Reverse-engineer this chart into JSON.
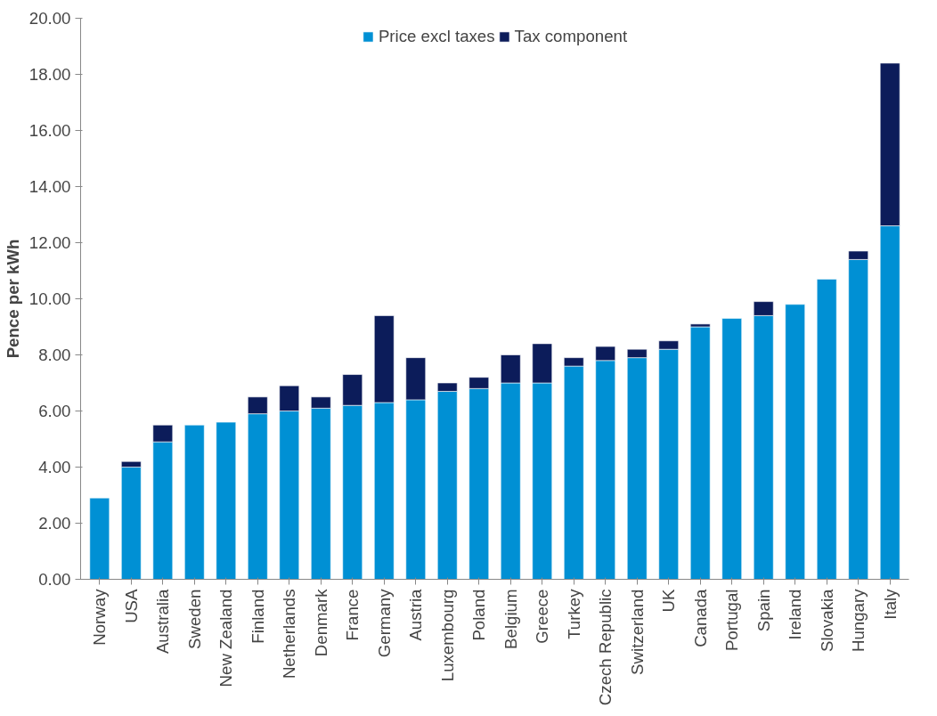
{
  "chart_data": {
    "type": "bar",
    "stacked": true,
    "ylabel": "Pence per kWh",
    "categories": [
      "Norway",
      "USA",
      "Australia",
      "Sweden",
      "New Zealand",
      "Finland",
      "Netherlands",
      "Denmark",
      "France",
      "Germany",
      "Austria",
      "Luxembourg",
      "Poland",
      "Belgium",
      "Greece",
      "Turkey",
      "Czech Republic",
      "Switzerland",
      "UK",
      "Canada",
      "Portugal",
      "Spain",
      "Ireland",
      "Slovakia",
      "Hungary",
      "Italy"
    ],
    "series": [
      {
        "name": "Price excl taxes",
        "color": "#0090d4",
        "values": [
          2.9,
          4.0,
          4.9,
          5.5,
          5.6,
          5.9,
          6.0,
          6.1,
          6.2,
          6.3,
          6.4,
          6.7,
          6.8,
          7.0,
          7.0,
          7.6,
          7.8,
          7.9,
          8.2,
          9.0,
          9.3,
          9.4,
          9.8,
          10.7,
          11.4,
          12.6
        ]
      },
      {
        "name": "Tax component",
        "color": "#0c1c5a",
        "values": [
          null,
          0.2,
          0.6,
          null,
          null,
          0.6,
          0.9,
          0.4,
          1.1,
          3.1,
          1.5,
          0.3,
          0.4,
          1.0,
          1.4,
          0.3,
          0.5,
          0.3,
          0.3,
          0.1,
          null,
          0.5,
          null,
          null,
          0.3,
          5.8
        ]
      }
    ],
    "ylim": [
      0,
      20
    ],
    "yticks": [
      {
        "value": 0,
        "label": "0.00"
      },
      {
        "value": 2,
        "label": "2.00"
      },
      {
        "value": 4,
        "label": "4.00"
      },
      {
        "value": 6,
        "label": "6.00"
      },
      {
        "value": 8,
        "label": "8.00"
      },
      {
        "value": 10,
        "label": "10.00"
      },
      {
        "value": 12,
        "label": "12.00"
      },
      {
        "value": 14,
        "label": "14.00"
      },
      {
        "value": 16,
        "label": "16.00"
      },
      {
        "value": 18,
        "label": "18.00"
      },
      {
        "value": 20,
        "label": "20.00"
      }
    ],
    "grid": false,
    "legend": "top"
  }
}
